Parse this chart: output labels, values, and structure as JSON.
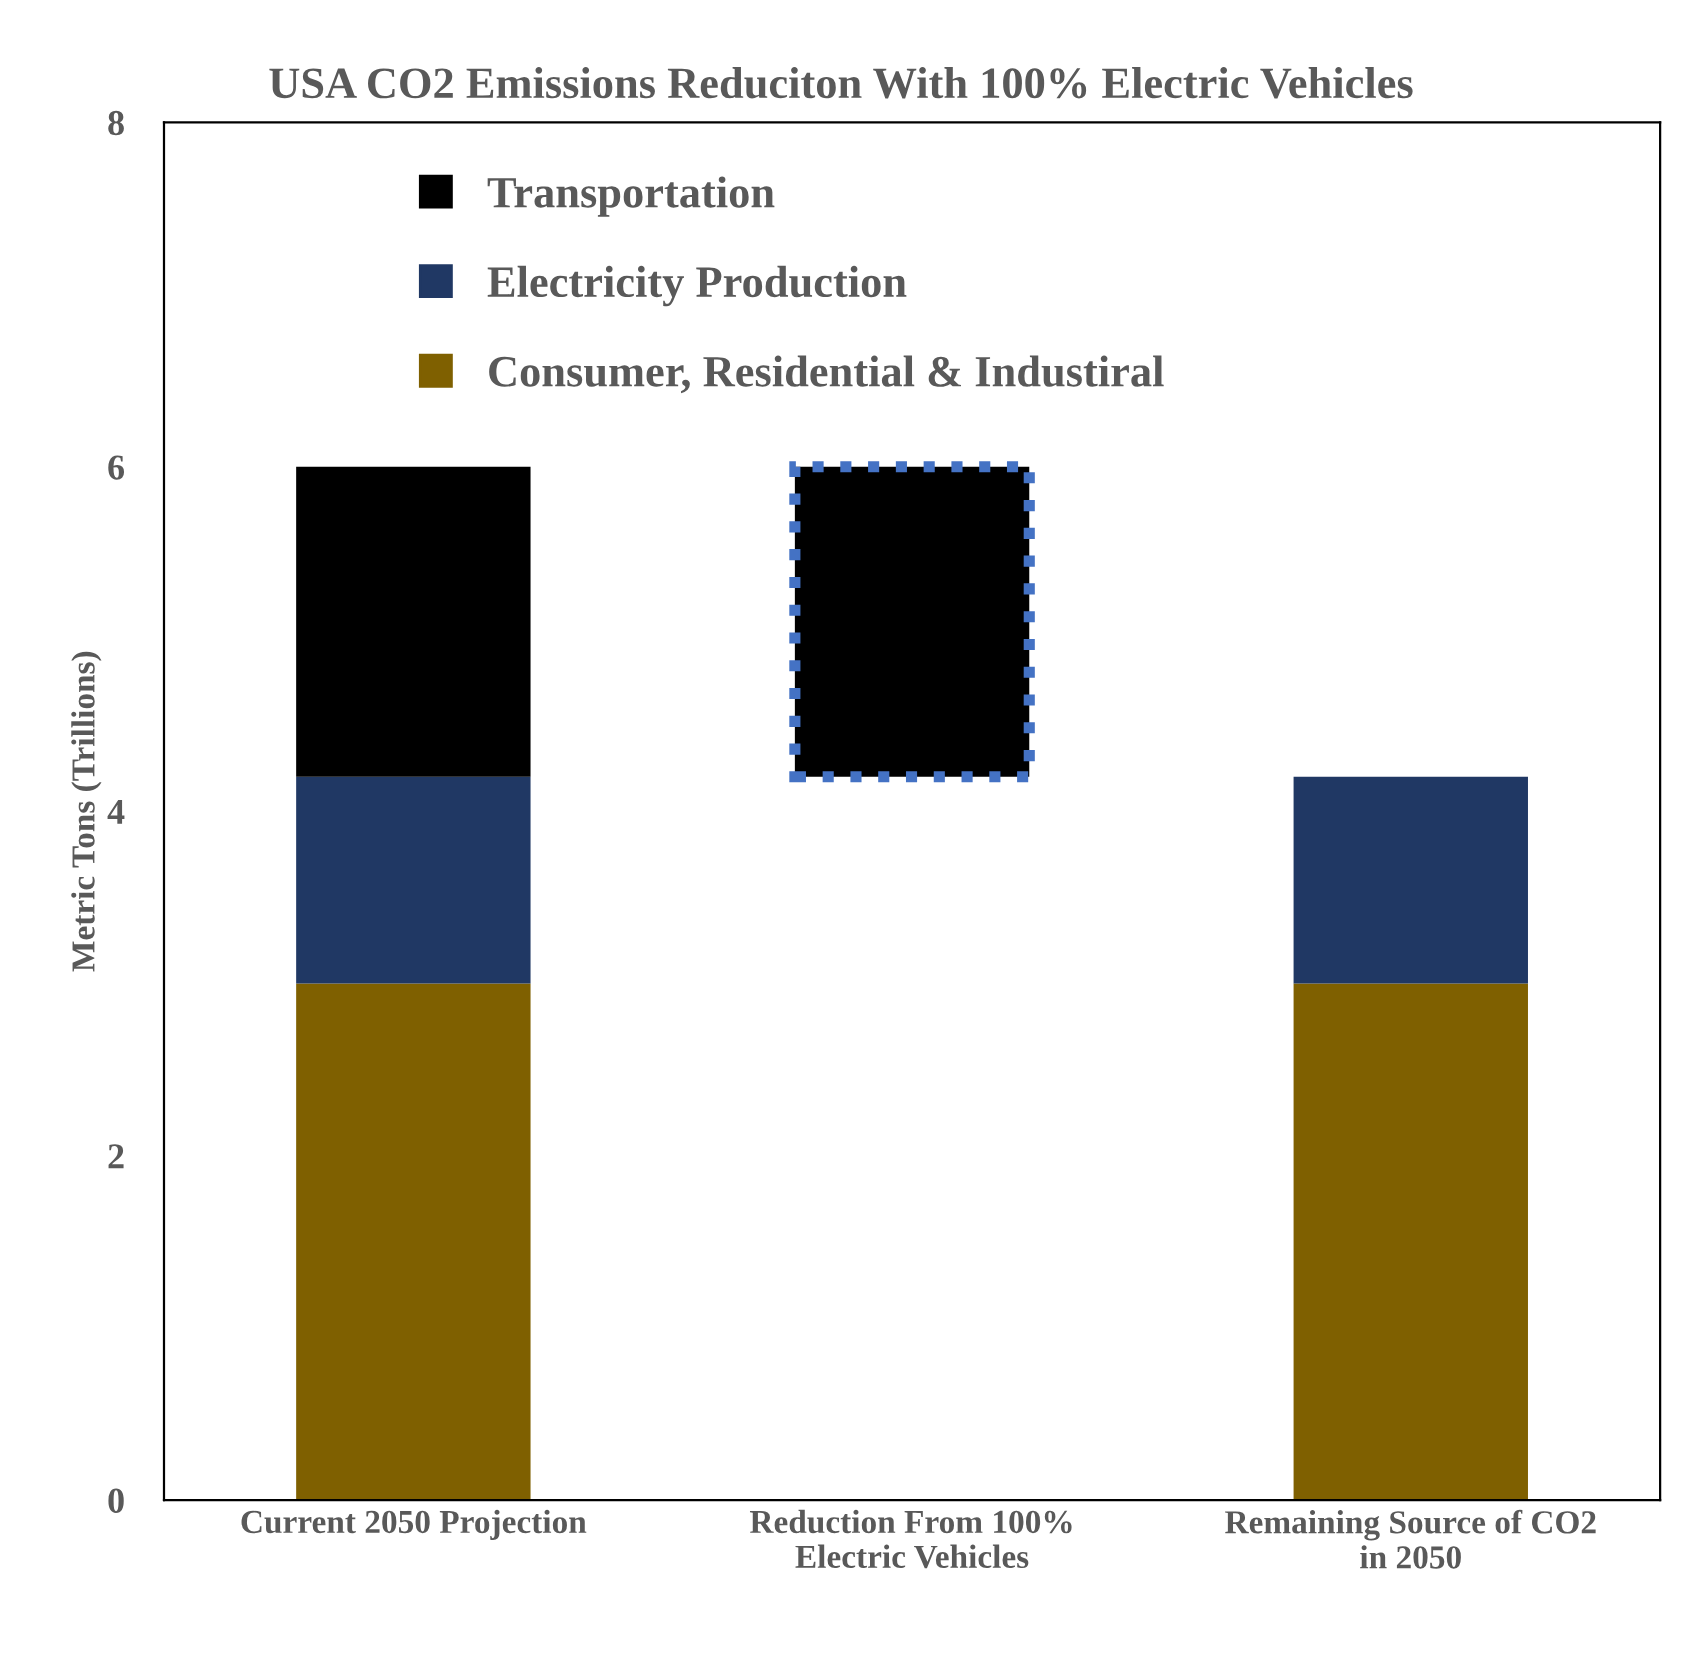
{
  "chart_data": {
    "type": "bar",
    "title": "USA CO2 Emissions Reduciton With 100% Electric Vehicles",
    "ylabel": "Metric Tons (Trillions)",
    "categories": [
      "Current 2050 Projection",
      "Reduction From 100% Electric Vehicles",
      "Remaining Source of CO2 in 2050"
    ],
    "stacked": true,
    "series": [
      {
        "name": "Consumer, Residential & Industiral",
        "color": "#7f6000",
        "values": [
          3,
          null,
          3
        ]
      },
      {
        "name": "Electricity Production",
        "color": "#203864",
        "values": [
          1.2,
          null,
          1.2
        ]
      },
      {
        "name": "Transportation",
        "color": "#000000",
        "values": [
          1.8,
          1.8,
          null
        ],
        "base": [
          4.2,
          4.2,
          null
        ]
      }
    ],
    "ylim": [
      0,
      8
    ],
    "yticks": [
      0,
      2,
      4,
      6,
      8
    ],
    "grid": false,
    "legend": "top"
  }
}
